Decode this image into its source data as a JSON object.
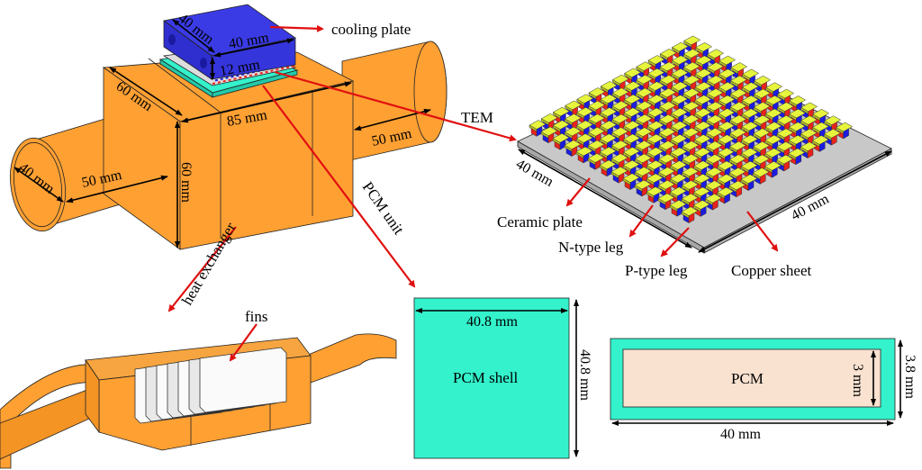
{
  "colors": {
    "heat_exchanger": "#ffa033",
    "cooling_plate": "#3b3be6",
    "pcm_shell": "#33f2cc",
    "pcm": "#f9e2d0",
    "copper_sheet": "#e6f53c",
    "p_type_leg": "#e8231c",
    "n_type_leg": "#1c1ce0",
    "ceramic_plate": "#c8c8c8",
    "callout_arrow": "#e01010"
  },
  "assembly": {
    "labels": {
      "cooling_plate": "cooling plate",
      "tem": "TEM",
      "pcm_unit": "PCM unit",
      "heat_exchanger": "heat exchanger",
      "fins": "fins"
    },
    "dimensions": {
      "cooling_depth": "40 mm",
      "cooling_width": "40 mm",
      "cooling_height": "12 mm",
      "box_depth": "60 mm",
      "box_length": "85 mm",
      "box_height": "60 mm",
      "pipe_diameter": "40 mm",
      "pipe_left_length": "50 mm",
      "pipe_right_length": "50 mm"
    }
  },
  "tem": {
    "labels": {
      "ceramic_plate": "Ceramic plate",
      "n_type_leg": "N-type leg",
      "p_type_leg": "P-type leg",
      "copper_sheet": "Copper sheet"
    },
    "dimensions": {
      "left": "40 mm",
      "right": "40 mm"
    }
  },
  "pcm_shell": {
    "label": "PCM shell",
    "width": "40.8 mm",
    "height": "40.8 mm"
  },
  "pcm_section": {
    "label": "PCM",
    "inner_height": "3 mm",
    "outer_height": "3.8 mm",
    "width": "40 mm"
  }
}
